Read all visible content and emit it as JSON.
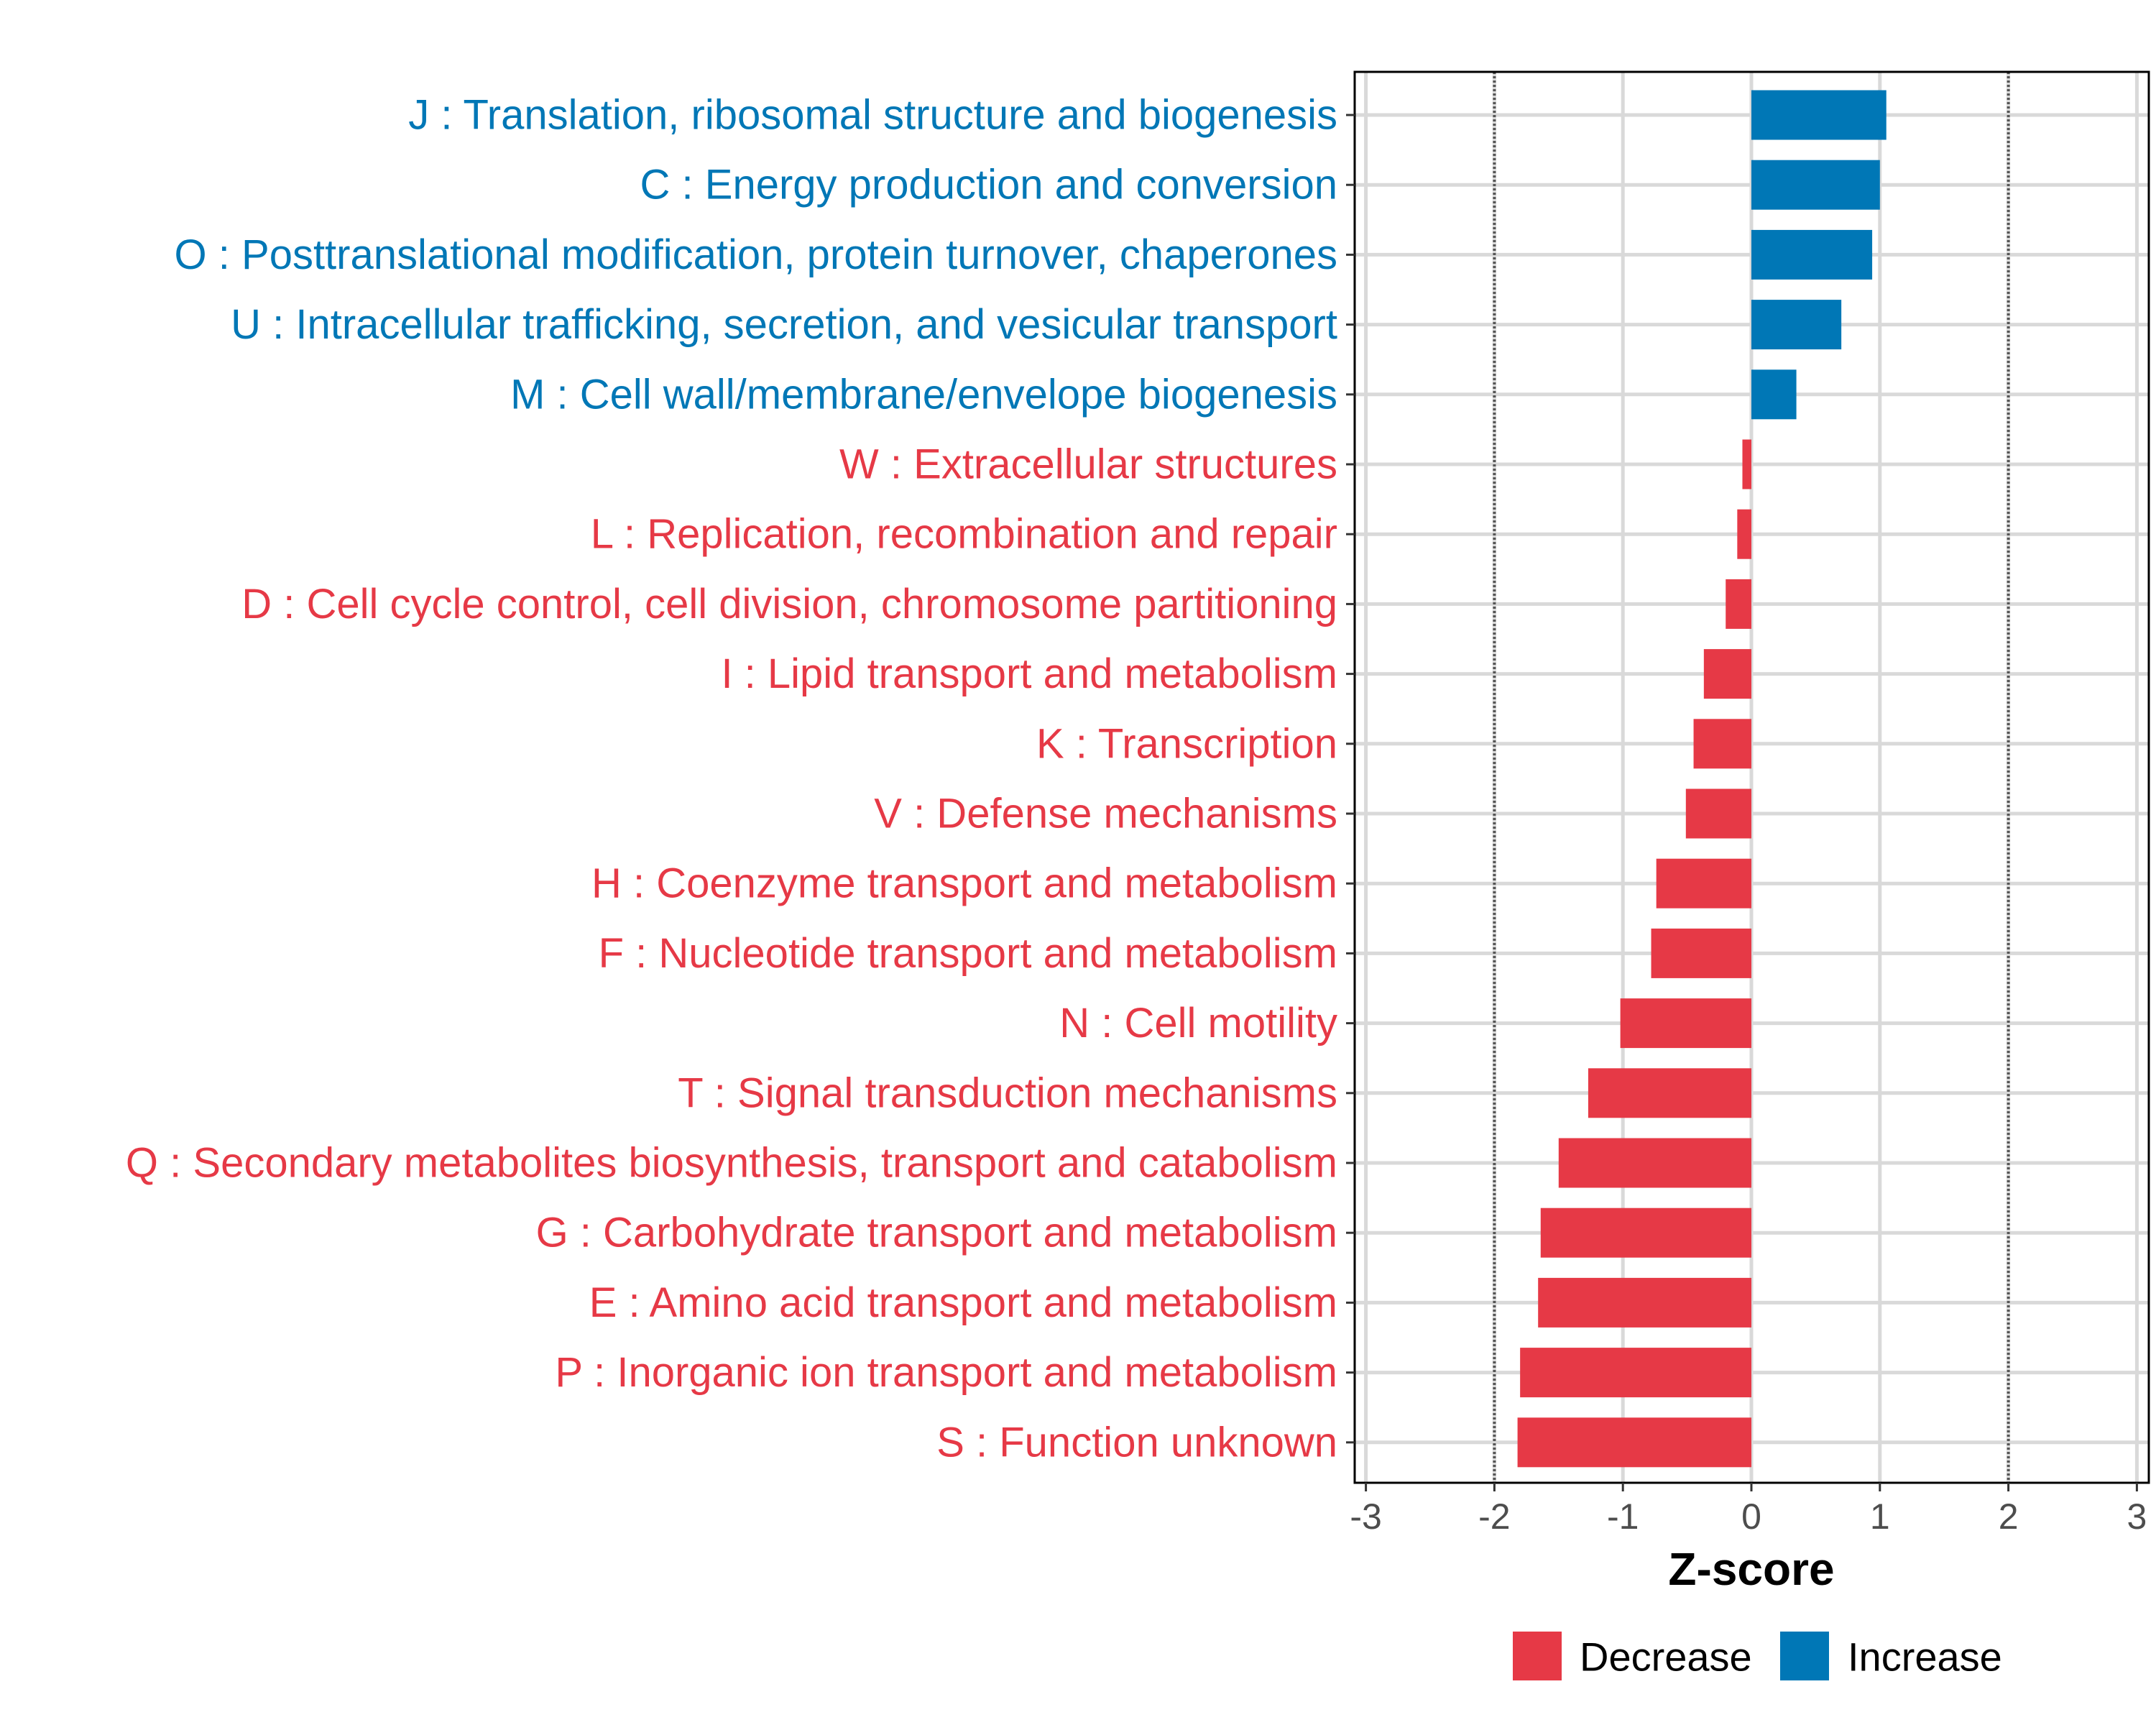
{
  "chart_data": {
    "type": "bar",
    "orientation": "horizontal",
    "title": "",
    "xlabel": "Z-score",
    "ylabel": "",
    "xlim": [
      -3.05,
      3.05
    ],
    "xticks": [
      -3,
      -2,
      -1,
      0,
      1,
      2,
      3
    ],
    "xtick_labels": [
      "-3",
      "-2",
      "-1",
      "0",
      "1",
      "2",
      "3"
    ],
    "reference_lines": [
      -2,
      2
    ],
    "grid": true,
    "legend_position": "bottom",
    "colors": {
      "Decrease": "#E63946",
      "Increase": "#0077B6"
    },
    "legend": [
      {
        "label": "Decrease",
        "color": "#E63946"
      },
      {
        "label": "Increase",
        "color": "#0077B6"
      }
    ],
    "categories": [
      "J : Translation, ribosomal structure and biogenesis",
      "C : Energy production and conversion",
      "O : Posttranslational modification, protein turnover, chaperones",
      "U : Intracellular trafficking, secretion, and vesicular transport",
      "M : Cell wall/membrane/envelope biogenesis",
      "W : Extracellular structures",
      "L : Replication, recombination and repair",
      "D : Cell cycle control, cell division, chromosome partitioning",
      "I : Lipid transport and metabolism",
      "K : Transcription",
      "V : Defense mechanisms",
      "H : Coenzyme transport and metabolism",
      "F : Nucleotide transport and metabolism",
      "N : Cell motility",
      "T : Signal transduction mechanisms",
      "Q : Secondary metabolites biosynthesis, transport and catabolism",
      "G : Carbohydrate transport and metabolism",
      "E : Amino acid transport and metabolism",
      "P : Inorganic ion transport and metabolism",
      "S : Function unknown"
    ],
    "values": [
      1.05,
      1.0,
      0.94,
      0.7,
      0.35,
      -0.07,
      -0.11,
      -0.2,
      -0.37,
      -0.45,
      -0.51,
      -0.74,
      -0.78,
      -1.02,
      -1.27,
      -1.5,
      -1.64,
      -1.66,
      -1.8,
      -1.82
    ],
    "groups": [
      "Increase",
      "Increase",
      "Increase",
      "Increase",
      "Increase",
      "Decrease",
      "Decrease",
      "Decrease",
      "Decrease",
      "Decrease",
      "Decrease",
      "Decrease",
      "Decrease",
      "Decrease",
      "Decrease",
      "Decrease",
      "Decrease",
      "Decrease",
      "Decrease",
      "Decrease"
    ]
  }
}
